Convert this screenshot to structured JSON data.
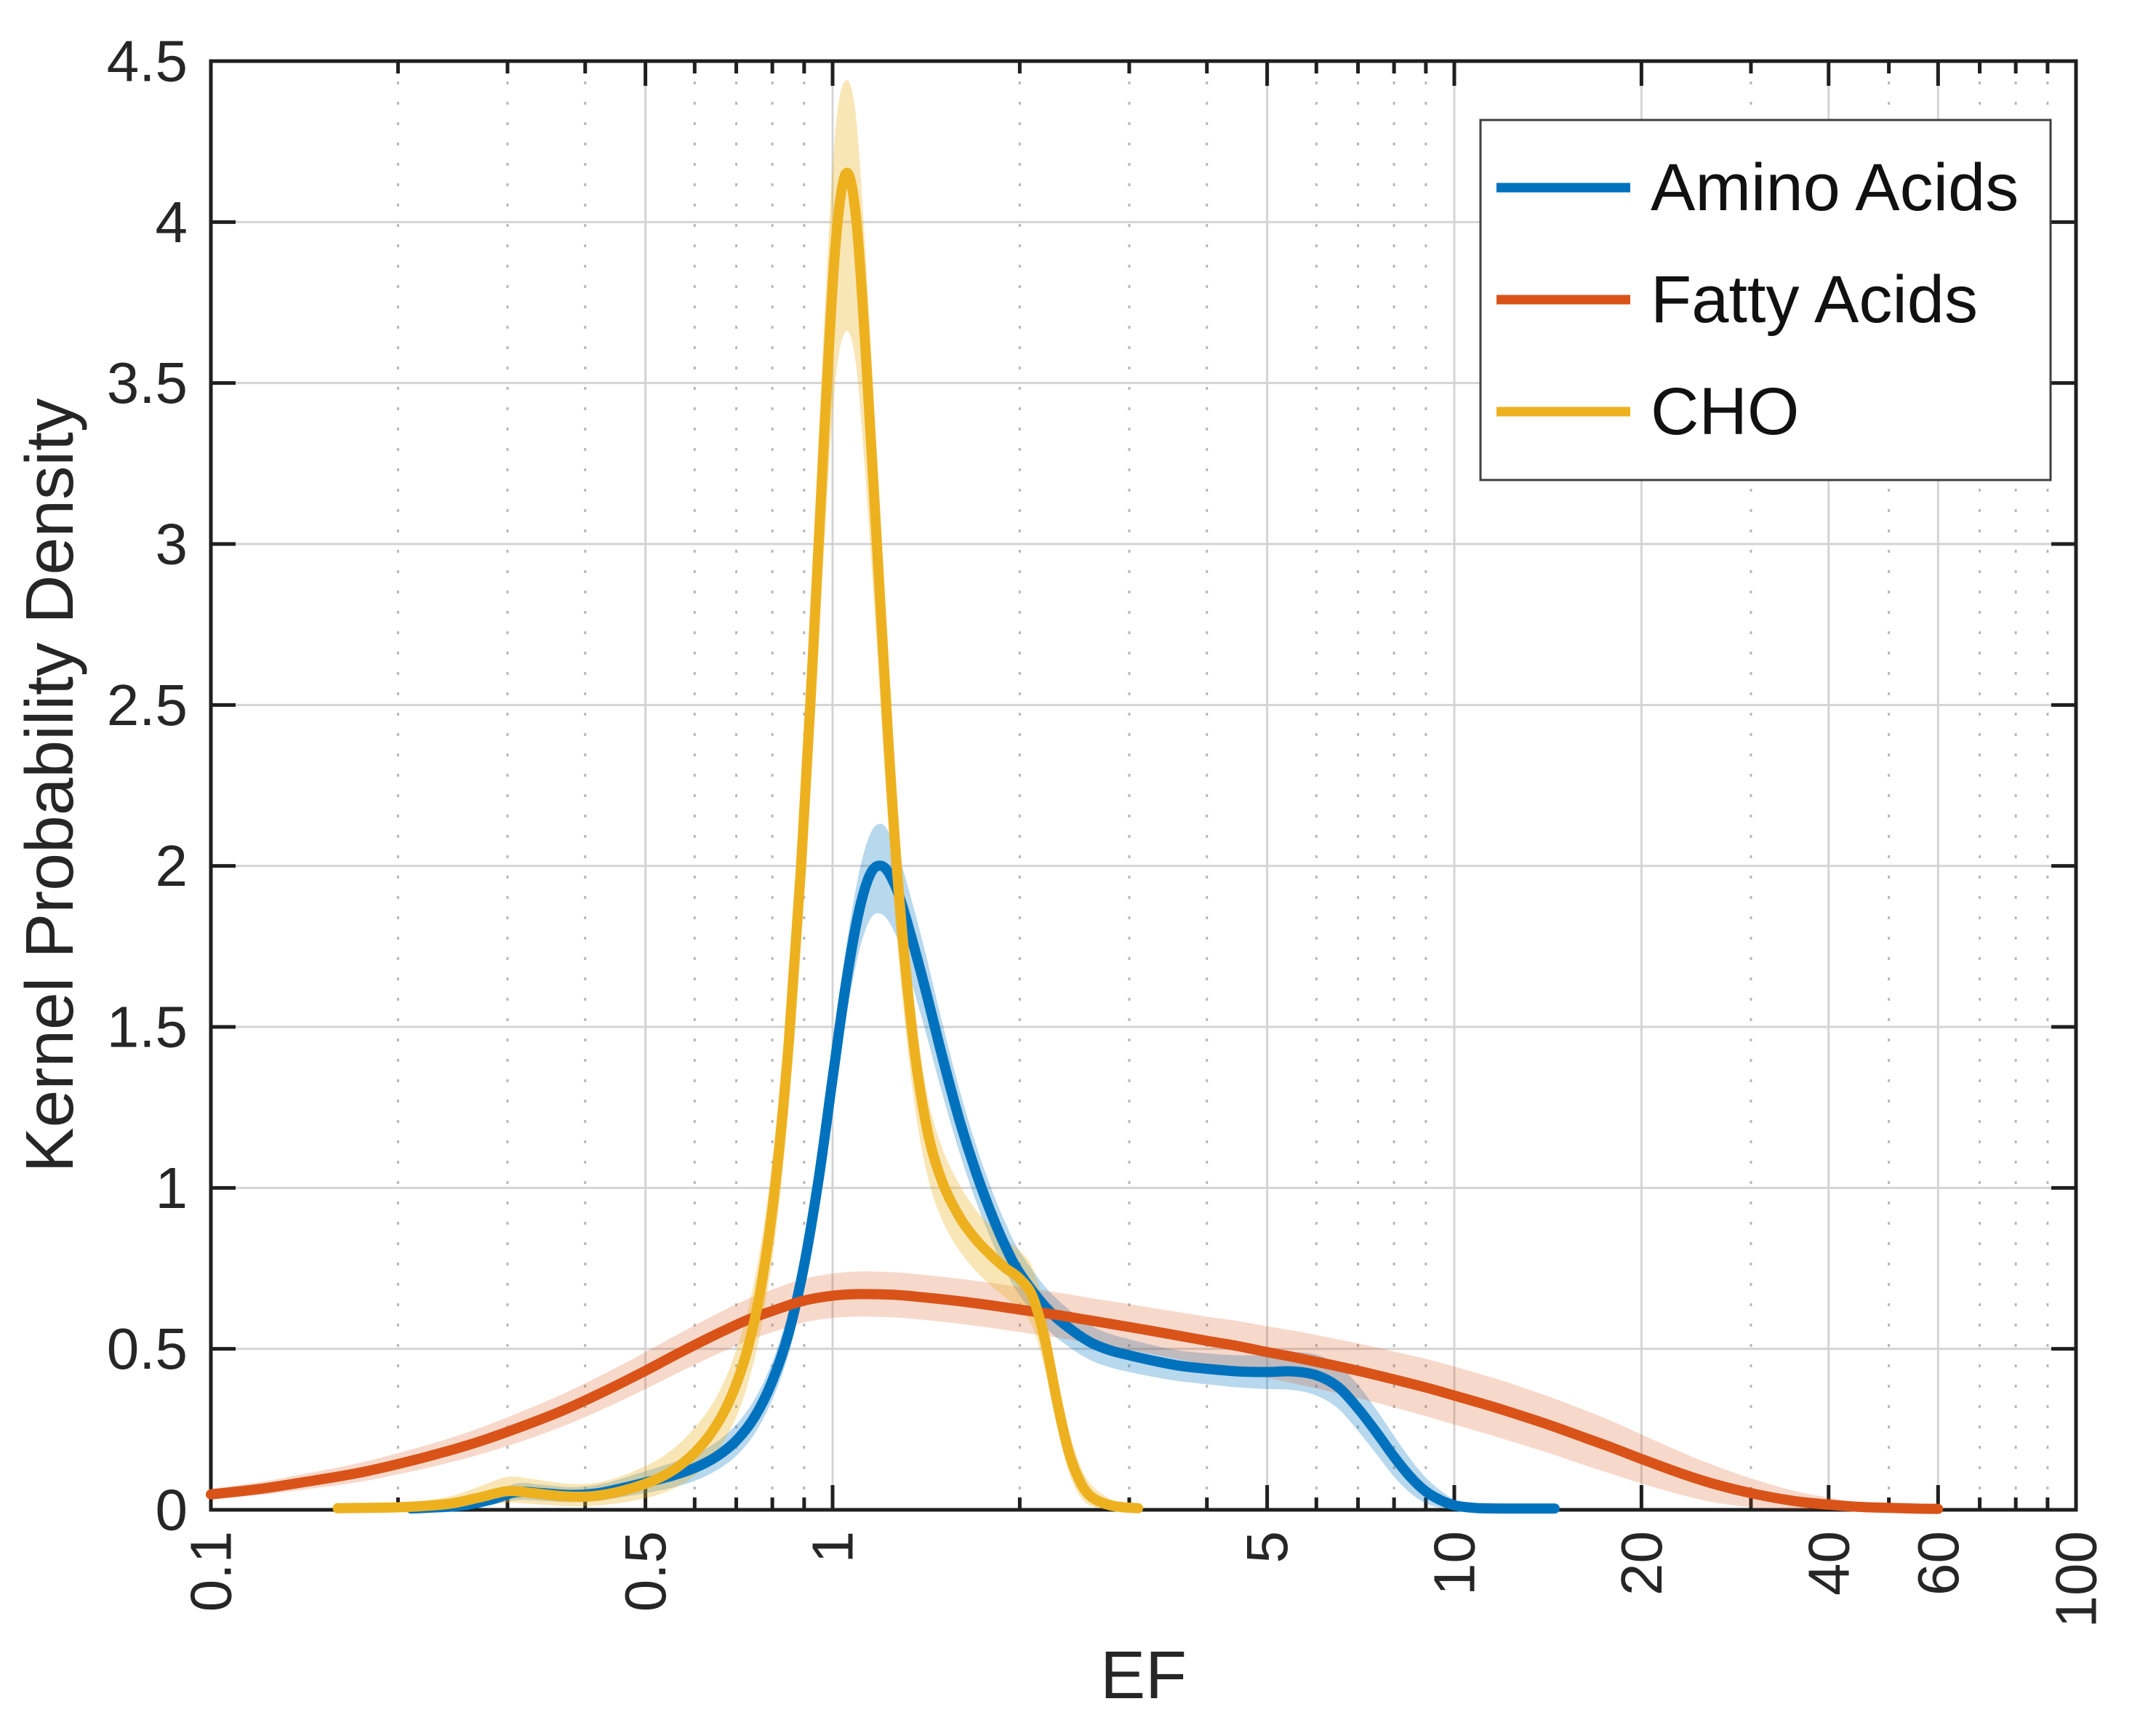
{
  "figure": {
    "background": "#ffffff",
    "axis_color": "#1f1f1f",
    "text_color": "#262626",
    "grid_major_color": "#d4d4d4",
    "grid_minor_color": "#b8b8b8",
    "legend_border_color": "#3f3f3f"
  },
  "chart_data": {
    "type": "line",
    "title": "",
    "xlabel": "EF",
    "ylabel": "Kernel Probability Density",
    "x_scale": "log",
    "xlim": [
      0.1,
      100
    ],
    "ylim": [
      0,
      4.5
    ],
    "grid": {
      "major": true,
      "minor_x_dotted": true
    },
    "x_ticks": [
      {
        "v": 0.1,
        "label": "0.1"
      },
      {
        "v": 0.5,
        "label": "0.5"
      },
      {
        "v": 1,
        "label": "1"
      },
      {
        "v": 5,
        "label": "5"
      },
      {
        "v": 10,
        "label": "10"
      },
      {
        "v": 20,
        "label": "20"
      },
      {
        "v": 40,
        "label": "40"
      },
      {
        "v": 60,
        "label": "60"
      },
      {
        "v": 100,
        "label": "100"
      }
    ],
    "x_minor_ticks": [
      0.2,
      0.3,
      0.4,
      0.6,
      0.7,
      0.8,
      0.9,
      2,
      3,
      4,
      6,
      7,
      8,
      9,
      30,
      50,
      70,
      80,
      90
    ],
    "y_ticks": [
      {
        "v": 0,
        "label": "0"
      },
      {
        "v": 0.5,
        "label": "0.5"
      },
      {
        "v": 1,
        "label": "1"
      },
      {
        "v": 1.5,
        "label": "1.5"
      },
      {
        "v": 2,
        "label": "2"
      },
      {
        "v": 2.5,
        "label": "2.5"
      },
      {
        "v": 3,
        "label": "3"
      },
      {
        "v": 3.5,
        "label": "3.5"
      },
      {
        "v": 4,
        "label": "4"
      },
      {
        "v": 4.5,
        "label": "4.5"
      }
    ],
    "legend": {
      "position": "top-right",
      "entries": [
        "Amino Acids",
        "Fatty Acids",
        "CHO"
      ]
    },
    "series": [
      {
        "name": "Amino Acids",
        "color": "#0072BD",
        "band_color": "rgba(0,114,189,0.28)",
        "points": [
          [
            0.21,
            0.004,
            0.001,
            0.01
          ],
          [
            0.25,
            0.012,
            0.004,
            0.025
          ],
          [
            0.28,
            0.03,
            0.014,
            0.05
          ],
          [
            0.31,
            0.055,
            0.03,
            0.082
          ],
          [
            0.34,
            0.052,
            0.028,
            0.078
          ],
          [
            0.38,
            0.046,
            0.024,
            0.07
          ],
          [
            0.42,
            0.052,
            0.028,
            0.078
          ],
          [
            0.46,
            0.068,
            0.04,
            0.098
          ],
          [
            0.5,
            0.085,
            0.052,
            0.12
          ],
          [
            0.55,
            0.105,
            0.068,
            0.145
          ],
          [
            0.6,
            0.13,
            0.09,
            0.172
          ],
          [
            0.65,
            0.165,
            0.122,
            0.21
          ],
          [
            0.7,
            0.215,
            0.168,
            0.265
          ],
          [
            0.75,
            0.29,
            0.238,
            0.345
          ],
          [
            0.8,
            0.4,
            0.342,
            0.46
          ],
          [
            0.85,
            0.55,
            0.485,
            0.618
          ],
          [
            0.9,
            0.76,
            0.685,
            0.838
          ],
          [
            0.95,
            1.03,
            0.945,
            1.118
          ],
          [
            1.0,
            1.34,
            1.245,
            1.438
          ],
          [
            1.05,
            1.63,
            1.52,
            1.74
          ],
          [
            1.1,
            1.85,
            1.725,
            1.968
          ],
          [
            1.15,
            1.975,
            1.835,
            2.1
          ],
          [
            1.2,
            2.0,
            1.85,
            2.13
          ],
          [
            1.25,
            1.955,
            1.805,
            2.08
          ],
          [
            1.3,
            1.865,
            1.72,
            1.985
          ],
          [
            1.4,
            1.64,
            1.51,
            1.755
          ],
          [
            1.5,
            1.41,
            1.295,
            1.515
          ],
          [
            1.6,
            1.21,
            1.11,
            1.305
          ],
          [
            1.7,
            1.05,
            0.96,
            1.135
          ],
          [
            1.8,
            0.92,
            0.838,
            0.998
          ],
          [
            1.9,
            0.815,
            0.74,
            0.888
          ],
          [
            2.0,
            0.735,
            0.665,
            0.802
          ],
          [
            2.2,
            0.63,
            0.566,
            0.692
          ],
          [
            2.4,
            0.565,
            0.506,
            0.622
          ],
          [
            2.6,
            0.52,
            0.465,
            0.573
          ],
          [
            2.8,
            0.495,
            0.442,
            0.546
          ],
          [
            3.0,
            0.48,
            0.428,
            0.53
          ],
          [
            3.3,
            0.462,
            0.412,
            0.51
          ],
          [
            3.6,
            0.448,
            0.4,
            0.495
          ],
          [
            4.0,
            0.438,
            0.39,
            0.486
          ],
          [
            4.5,
            0.43,
            0.38,
            0.48
          ],
          [
            5.0,
            0.428,
            0.375,
            0.482
          ],
          [
            5.5,
            0.43,
            0.372,
            0.49
          ],
          [
            6.0,
            0.418,
            0.355,
            0.482
          ],
          [
            6.5,
            0.382,
            0.315,
            0.45
          ],
          [
            7.0,
            0.315,
            0.245,
            0.388
          ],
          [
            7.5,
            0.24,
            0.172,
            0.31
          ],
          [
            8.0,
            0.165,
            0.103,
            0.23
          ],
          [
            8.5,
            0.102,
            0.052,
            0.158
          ],
          [
            9.0,
            0.057,
            0.02,
            0.1
          ],
          [
            9.5,
            0.03,
            0.006,
            0.06
          ],
          [
            10.0,
            0.014,
            0.001,
            0.032
          ],
          [
            10.5,
            0.008,
            0.001,
            0.018
          ],
          [
            11.0,
            0.005,
            0.001,
            0.011
          ],
          [
            12.0,
            0.004,
            0.001,
            0.008
          ],
          [
            13.5,
            0.004,
            0.001,
            0.008
          ],
          [
            14.5,
            0.004,
            0.001,
            0.008
          ]
        ]
      },
      {
        "name": "Fatty Acids",
        "color": "#D95319",
        "band_color": "rgba(217,83,25,0.22)",
        "points": [
          [
            0.1,
            0.048,
            0.032,
            0.065
          ],
          [
            0.12,
            0.065,
            0.046,
            0.086
          ],
          [
            0.14,
            0.085,
            0.062,
            0.11
          ],
          [
            0.17,
            0.112,
            0.084,
            0.142
          ],
          [
            0.2,
            0.142,
            0.11,
            0.176
          ],
          [
            0.24,
            0.182,
            0.145,
            0.22
          ],
          [
            0.28,
            0.222,
            0.18,
            0.265
          ],
          [
            0.33,
            0.272,
            0.225,
            0.32
          ],
          [
            0.38,
            0.32,
            0.27,
            0.372
          ],
          [
            0.44,
            0.378,
            0.324,
            0.433
          ],
          [
            0.5,
            0.432,
            0.375,
            0.49
          ],
          [
            0.57,
            0.49,
            0.43,
            0.55
          ],
          [
            0.65,
            0.545,
            0.482,
            0.608
          ],
          [
            0.73,
            0.59,
            0.525,
            0.655
          ],
          [
            0.82,
            0.625,
            0.558,
            0.692
          ],
          [
            0.9,
            0.65,
            0.582,
            0.718
          ],
          [
            1.0,
            0.665,
            0.596,
            0.734
          ],
          [
            1.1,
            0.67,
            0.6,
            0.74
          ],
          [
            1.25,
            0.668,
            0.598,
            0.738
          ],
          [
            1.4,
            0.66,
            0.59,
            0.73
          ],
          [
            1.6,
            0.648,
            0.578,
            0.718
          ],
          [
            1.8,
            0.635,
            0.565,
            0.705
          ],
          [
            2.0,
            0.622,
            0.552,
            0.692
          ],
          [
            2.3,
            0.605,
            0.535,
            0.675
          ],
          [
            2.6,
            0.588,
            0.518,
            0.658
          ],
          [
            3.0,
            0.568,
            0.497,
            0.639
          ],
          [
            3.5,
            0.545,
            0.472,
            0.618
          ],
          [
            4.0,
            0.525,
            0.45,
            0.6
          ],
          [
            4.5,
            0.508,
            0.43,
            0.586
          ],
          [
            5.0,
            0.49,
            0.41,
            0.57
          ],
          [
            5.5,
            0.475,
            0.393,
            0.557
          ],
          [
            6.0,
            0.46,
            0.377,
            0.543
          ],
          [
            7.0,
            0.432,
            0.347,
            0.517
          ],
          [
            8.0,
            0.405,
            0.318,
            0.492
          ],
          [
            9.0,
            0.38,
            0.291,
            0.469
          ],
          [
            10.0,
            0.355,
            0.265,
            0.445
          ],
          [
            11.0,
            0.332,
            0.242,
            0.422
          ],
          [
            12.0,
            0.31,
            0.22,
            0.4
          ],
          [
            14.0,
            0.268,
            0.18,
            0.356
          ],
          [
            16.0,
            0.228,
            0.142,
            0.314
          ],
          [
            18.0,
            0.192,
            0.11,
            0.274
          ],
          [
            20.0,
            0.158,
            0.082,
            0.234
          ],
          [
            23.0,
            0.115,
            0.048,
            0.182
          ],
          [
            26.0,
            0.082,
            0.024,
            0.14
          ],
          [
            30.0,
            0.052,
            0.008,
            0.098
          ],
          [
            35.0,
            0.028,
            0.001,
            0.06
          ],
          [
            40.0,
            0.016,
            0.0,
            0.038
          ],
          [
            45.0,
            0.009,
            0.0,
            0.023
          ],
          [
            50.0,
            0.006,
            0.0,
            0.014
          ],
          [
            55.0,
            0.004,
            0.0,
            0.009
          ],
          [
            60.0,
            0.003,
            0.0,
            0.006
          ]
        ]
      },
      {
        "name": "CHO",
        "color": "#EDB120",
        "band_color": "rgba(237,177,32,0.32)",
        "points": [
          [
            0.16,
            0.005,
            0.0,
            0.013
          ],
          [
            0.2,
            0.008,
            0.0,
            0.02
          ],
          [
            0.24,
            0.018,
            0.003,
            0.04
          ],
          [
            0.27,
            0.038,
            0.012,
            0.072
          ],
          [
            0.3,
            0.058,
            0.022,
            0.102
          ],
          [
            0.33,
            0.052,
            0.018,
            0.095
          ],
          [
            0.37,
            0.042,
            0.012,
            0.082
          ],
          [
            0.41,
            0.042,
            0.012,
            0.082
          ],
          [
            0.45,
            0.055,
            0.02,
            0.1
          ],
          [
            0.49,
            0.075,
            0.032,
            0.128
          ],
          [
            0.53,
            0.102,
            0.05,
            0.162
          ],
          [
            0.57,
            0.14,
            0.078,
            0.21
          ],
          [
            0.61,
            0.192,
            0.118,
            0.272
          ],
          [
            0.65,
            0.262,
            0.178,
            0.35
          ],
          [
            0.69,
            0.36,
            0.262,
            0.462
          ],
          [
            0.73,
            0.5,
            0.388,
            0.618
          ],
          [
            0.77,
            0.71,
            0.578,
            0.845
          ],
          [
            0.81,
            1.02,
            0.858,
            1.185
          ],
          [
            0.85,
            1.45,
            1.25,
            1.65
          ],
          [
            0.89,
            2.0,
            1.76,
            2.24
          ],
          [
            0.93,
            2.66,
            2.36,
            2.95
          ],
          [
            0.97,
            3.35,
            3.0,
            3.7
          ],
          [
            1.01,
            3.92,
            3.5,
            4.28
          ],
          [
            1.05,
            4.15,
            3.66,
            4.44
          ],
          [
            1.09,
            4.02,
            3.56,
            4.33
          ],
          [
            1.13,
            3.6,
            3.2,
            3.9
          ],
          [
            1.18,
            2.98,
            2.66,
            3.24
          ],
          [
            1.23,
            2.38,
            2.12,
            2.58
          ],
          [
            1.28,
            1.9,
            1.69,
            2.07
          ],
          [
            1.35,
            1.45,
            1.28,
            1.58
          ],
          [
            1.42,
            1.18,
            1.04,
            1.29
          ],
          [
            1.5,
            1.02,
            0.9,
            1.125
          ],
          [
            1.6,
            0.91,
            0.805,
            1.01
          ],
          [
            1.7,
            0.84,
            0.742,
            0.932
          ],
          [
            1.8,
            0.79,
            0.695,
            0.88
          ],
          [
            1.9,
            0.75,
            0.658,
            0.838
          ],
          [
            2.0,
            0.718,
            0.625,
            0.805
          ],
          [
            2.1,
            0.66,
            0.565,
            0.75
          ],
          [
            2.2,
            0.52,
            0.43,
            0.61
          ],
          [
            2.3,
            0.33,
            0.252,
            0.412
          ],
          [
            2.4,
            0.178,
            0.115,
            0.245
          ],
          [
            2.5,
            0.088,
            0.042,
            0.14
          ],
          [
            2.6,
            0.042,
            0.012,
            0.08
          ],
          [
            2.75,
            0.018,
            0.002,
            0.042
          ],
          [
            2.9,
            0.009,
            0.0,
            0.022
          ],
          [
            3.1,
            0.005,
            0.0,
            0.012
          ]
        ]
      }
    ]
  }
}
